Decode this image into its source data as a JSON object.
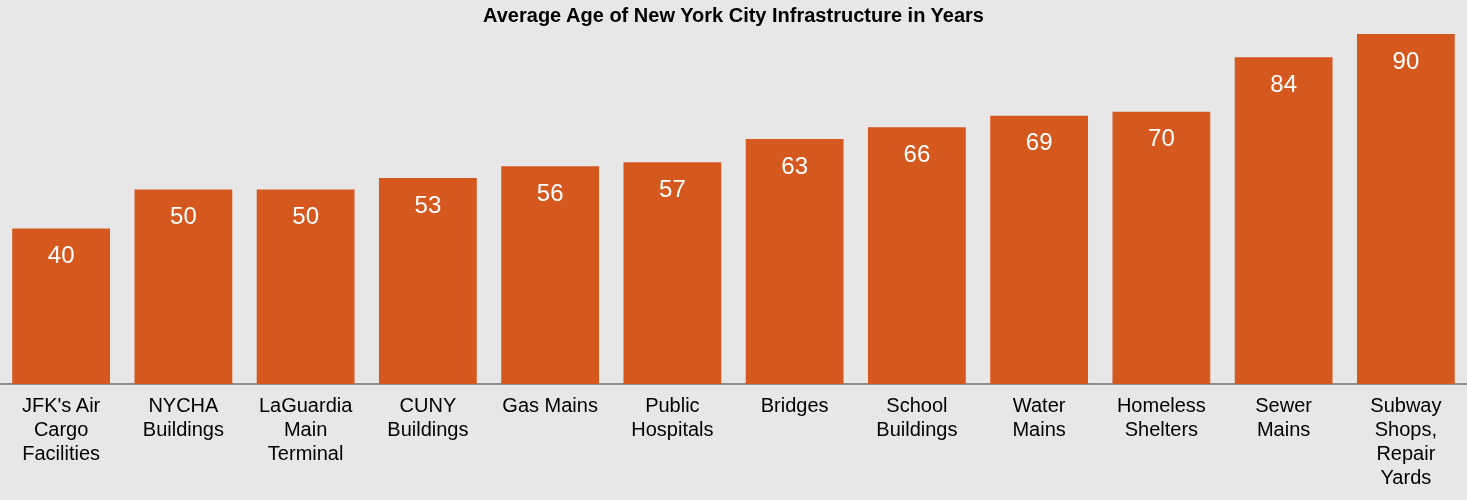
{
  "chart_data": {
    "type": "bar",
    "title": "Average Age of New York City Infrastructure in Years",
    "categories": [
      "JFK's Air Cargo Facilities",
      "NYCHA Buildings",
      "LaGuardia Main Terminal",
      "CUNY Buildings",
      "Gas Mains",
      "Public Hospitals",
      "Bridges",
      "School Buildings",
      "Water Mains",
      "Homeless Shelters",
      "Sewer Mains",
      "Subway Shops, Repair Yards"
    ],
    "values": [
      40,
      50,
      50,
      53,
      56,
      57,
      63,
      66,
      69,
      70,
      84,
      90
    ],
    "color": "#d5591f",
    "data_labels": true,
    "grid": false,
    "legend": false
  }
}
